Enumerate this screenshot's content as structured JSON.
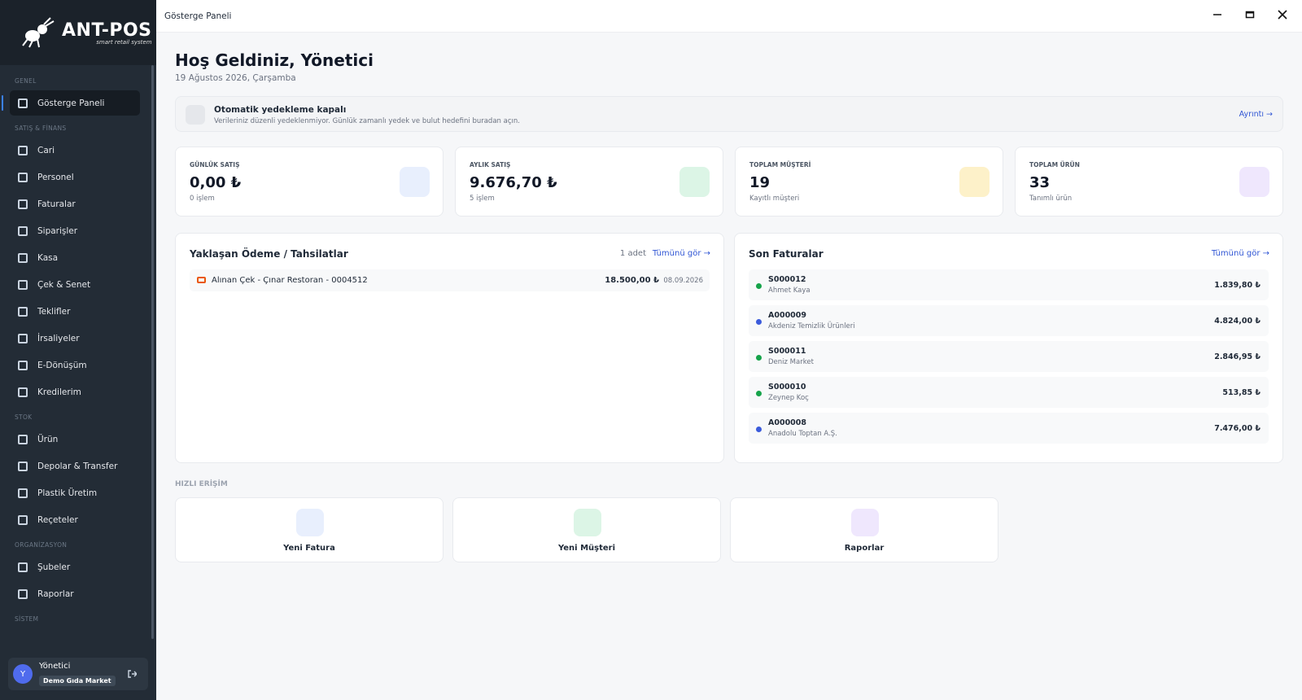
{
  "window": {
    "title": "Gösterge Paneli"
  },
  "sidebar": {
    "logo": {
      "name": "ANT-POS",
      "tagline": "smart retail system"
    },
    "sections": [
      {
        "title": "GENEL",
        "items": [
          "Gösterge Paneli"
        ]
      },
      {
        "title": "SATIŞ & FİNANS",
        "items": [
          "Cari",
          "Personel",
          "Faturalar",
          "Siparişler",
          "Kasa",
          "Çek & Senet",
          "Teklifler",
          "İrsaliyeler",
          "E-Dönüşüm",
          "Kredilerim"
        ]
      },
      {
        "title": "STOK",
        "items": [
          "Ürün",
          "Depolar & Transfer",
          "Plastik Üretim",
          "Reçeteler"
        ]
      },
      {
        "title": "ORGANİZASYON",
        "items": [
          "Şubeler",
          "Raporlar"
        ]
      },
      {
        "title": "SİSTEM",
        "items": []
      }
    ],
    "user": {
      "initial": "Y",
      "name": "Yönetici",
      "company": "Demo Gıda Market"
    }
  },
  "header": {
    "title": "Hoş Geldiniz, Yönetici",
    "date": "19 Ağustos 2026, Çarşamba"
  },
  "banner": {
    "title": "Otomatik yedekleme kapalı",
    "text": "Verileriniz düzenli yedeklenmiyor. Günlük zamanlı yedek ve bulut hedefini buradan açın.",
    "link": "Ayrıntı →"
  },
  "stats": [
    {
      "label": "GÜNLÜK SATIŞ",
      "value": "0,00 ₺",
      "note": "0 işlem",
      "color": "#e8effd"
    },
    {
      "label": "AYLIK SATIŞ",
      "value": "9.676,70 ₺",
      "note": "5 işlem",
      "color": "#dcf5e6"
    },
    {
      "label": "TOPLAM MÜŞTERİ",
      "value": "19",
      "note": "Kayıtlı müşteri",
      "color": "#fdf1c9"
    },
    {
      "label": "TOPLAM ÜRÜN",
      "value": "33",
      "note": "Tanımlı ürün",
      "color": "#efe7fd"
    }
  ],
  "upcoming": {
    "title": "Yaklaşan Ödeme / Tahsilatlar",
    "count": "1 adet",
    "link": "Tümünü gör →",
    "rows": [
      {
        "text": "Alınan Çek - Çınar Restoran - 0004512",
        "amount": "18.500,00 ₺",
        "date": "08.09.2026"
      }
    ]
  },
  "invoices": {
    "title": "Son Faturalar",
    "link": "Tümünü gör →",
    "rows": [
      {
        "no": "S000012",
        "customer": "Ahmet Kaya",
        "amount": "1.839,80 ₺",
        "color": "#16a34a"
      },
      {
        "no": "A000009",
        "customer": "Akdeniz Temizlik Ürünleri",
        "amount": "4.824,00 ₺",
        "color": "#3b5bdb"
      },
      {
        "no": "S000011",
        "customer": "Deniz Market",
        "amount": "2.846,95 ₺",
        "color": "#16a34a"
      },
      {
        "no": "S000010",
        "customer": "Zeynep Koç",
        "amount": "513,85 ₺",
        "color": "#16a34a"
      },
      {
        "no": "A000008",
        "customer": "Anadolu Toptan A.Ş.",
        "amount": "7.476,00 ₺",
        "color": "#3b5bdb"
      }
    ]
  },
  "quick": {
    "title": "HIZLI ERİŞİM",
    "items": [
      {
        "label": "Yeni Fatura",
        "color": "#e8effd"
      },
      {
        "label": "Yeni Müşteri",
        "color": "#dcf5e6"
      },
      {
        "label": "Raporlar",
        "color": "#efe7fd"
      }
    ]
  }
}
